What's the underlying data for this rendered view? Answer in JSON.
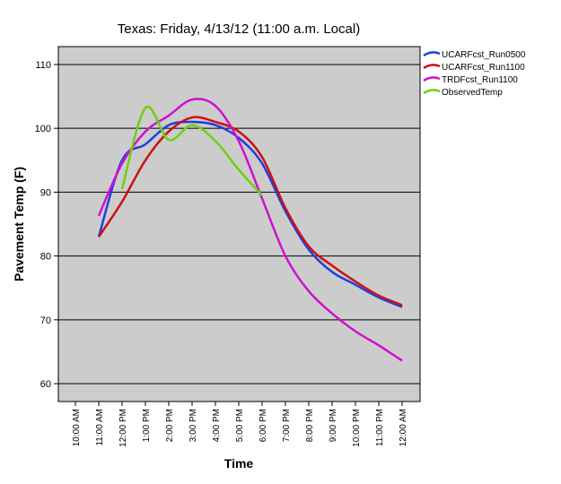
{
  "chart_data": {
    "type": "line",
    "title": "Texas: Friday, 4/13/12 (11:00 a.m. Local)",
    "x_label": "Time",
    "y_label": "Pavement Temp (F)",
    "categories": [
      "10:00 AM",
      "11:00 AM",
      "12:00 PM",
      "1:00 PM",
      "2:00 PM",
      "3:00 PM",
      "4:00 PM",
      "5:00 PM",
      "6:00 PM",
      "7:00 PM",
      "8:00 PM",
      "9:00 PM",
      "10:00 PM",
      "11:00 PM",
      "12:00 AM"
    ],
    "series": [
      {
        "name": "UCARFcst_Run0500",
        "color": "#1f3fe0",
        "values": [
          null,
          83,
          95,
          97.5,
          100.5,
          101,
          100.5,
          98.5,
          94.5,
          87,
          81,
          77.5,
          75.5,
          73.5,
          72
        ]
      },
      {
        "name": "UCARFcst_Run1100",
        "color": "#d01010",
        "values": [
          null,
          83,
          88.5,
          95,
          99.5,
          101.7,
          101,
          99.5,
          95.5,
          87.5,
          81.5,
          78.5,
          76,
          73.8,
          72.3
        ]
      },
      {
        "name": "TRDFcst_Run1100",
        "color": "#d010d0",
        "values": [
          null,
          86.3,
          94.5,
          99.5,
          102,
          104.5,
          103.5,
          98,
          89,
          80,
          74.5,
          71,
          68.2,
          66,
          63.6
        ]
      },
      {
        "name": "ObservedTemp",
        "color": "#70d010",
        "values": [
          null,
          null,
          90.5,
          103.2,
          98.2,
          100.5,
          98,
          93.5,
          89.5,
          null,
          null,
          null,
          null,
          null,
          null
        ]
      }
    ],
    "ylim": [
      57.2,
      112.8
    ],
    "yticks": [
      60,
      70,
      80,
      90,
      100,
      110
    ],
    "grid": true,
    "legend": "top-right"
  }
}
